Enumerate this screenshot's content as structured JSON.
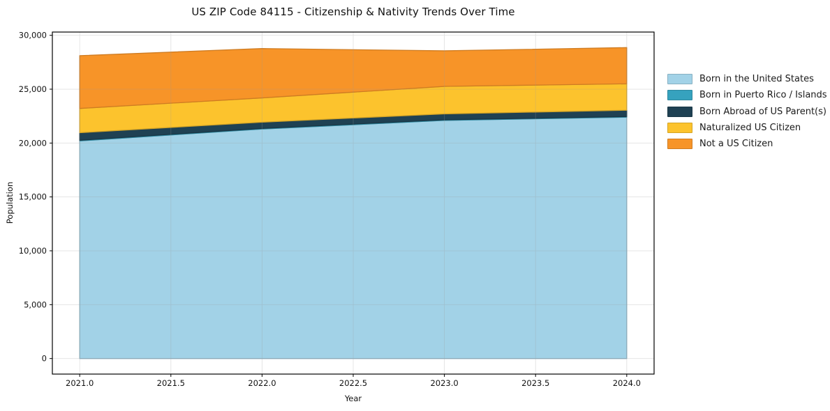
{
  "title": "US ZIP Code 84115 - Citizenship & Nativity Trends Over Time",
  "chart_data": {
    "type": "area",
    "stacked": true,
    "title": "US ZIP Code 84115 - Citizenship & Nativity Trends Over Time",
    "xlabel": "Year",
    "ylabel": "Population",
    "x": [
      2021,
      2022,
      2023,
      2024
    ],
    "xlim": [
      2020.85,
      2024.15
    ],
    "ylim": [
      -1443,
      30303
    ],
    "x_ticks": [
      "2021.0",
      "2021.5",
      "2022.0",
      "2022.5",
      "2023.0",
      "2023.5",
      "2024.0"
    ],
    "x_tick_values": [
      2021,
      2021.5,
      2022,
      2022.5,
      2023,
      2023.5,
      2024
    ],
    "y_ticks": [
      "0",
      "5,000",
      "10,000",
      "15,000",
      "20,000",
      "25,000",
      "30,000"
    ],
    "y_tick_values": [
      0,
      5000,
      10000,
      15000,
      20000,
      25000,
      30000
    ],
    "grid": true,
    "grid_color": "#999999",
    "legend_position": "center-right-outside",
    "series": [
      {
        "name": "Born in the United States",
        "color": "#A2D2E7",
        "values": [
          20200,
          21300,
          22100,
          22400
        ]
      },
      {
        "name": "Born in Puerto Rico / Islands",
        "color": "#36A2BE",
        "values": [
          60,
          60,
          60,
          60
        ]
      },
      {
        "name": "Born Abroad of US Parent(s)",
        "color": "#1F4153",
        "values": [
          700,
          580,
          550,
          590
        ]
      },
      {
        "name": "Naturalized US Citizen",
        "color": "#FCC32D",
        "values": [
          2250,
          2250,
          2550,
          2450
        ]
      },
      {
        "name": "Not a US Citizen",
        "color": "#F79428",
        "values": [
          4900,
          4580,
          3300,
          3360
        ]
      }
    ],
    "totals": [
      28110,
      28770,
      28560,
      28860
    ]
  }
}
